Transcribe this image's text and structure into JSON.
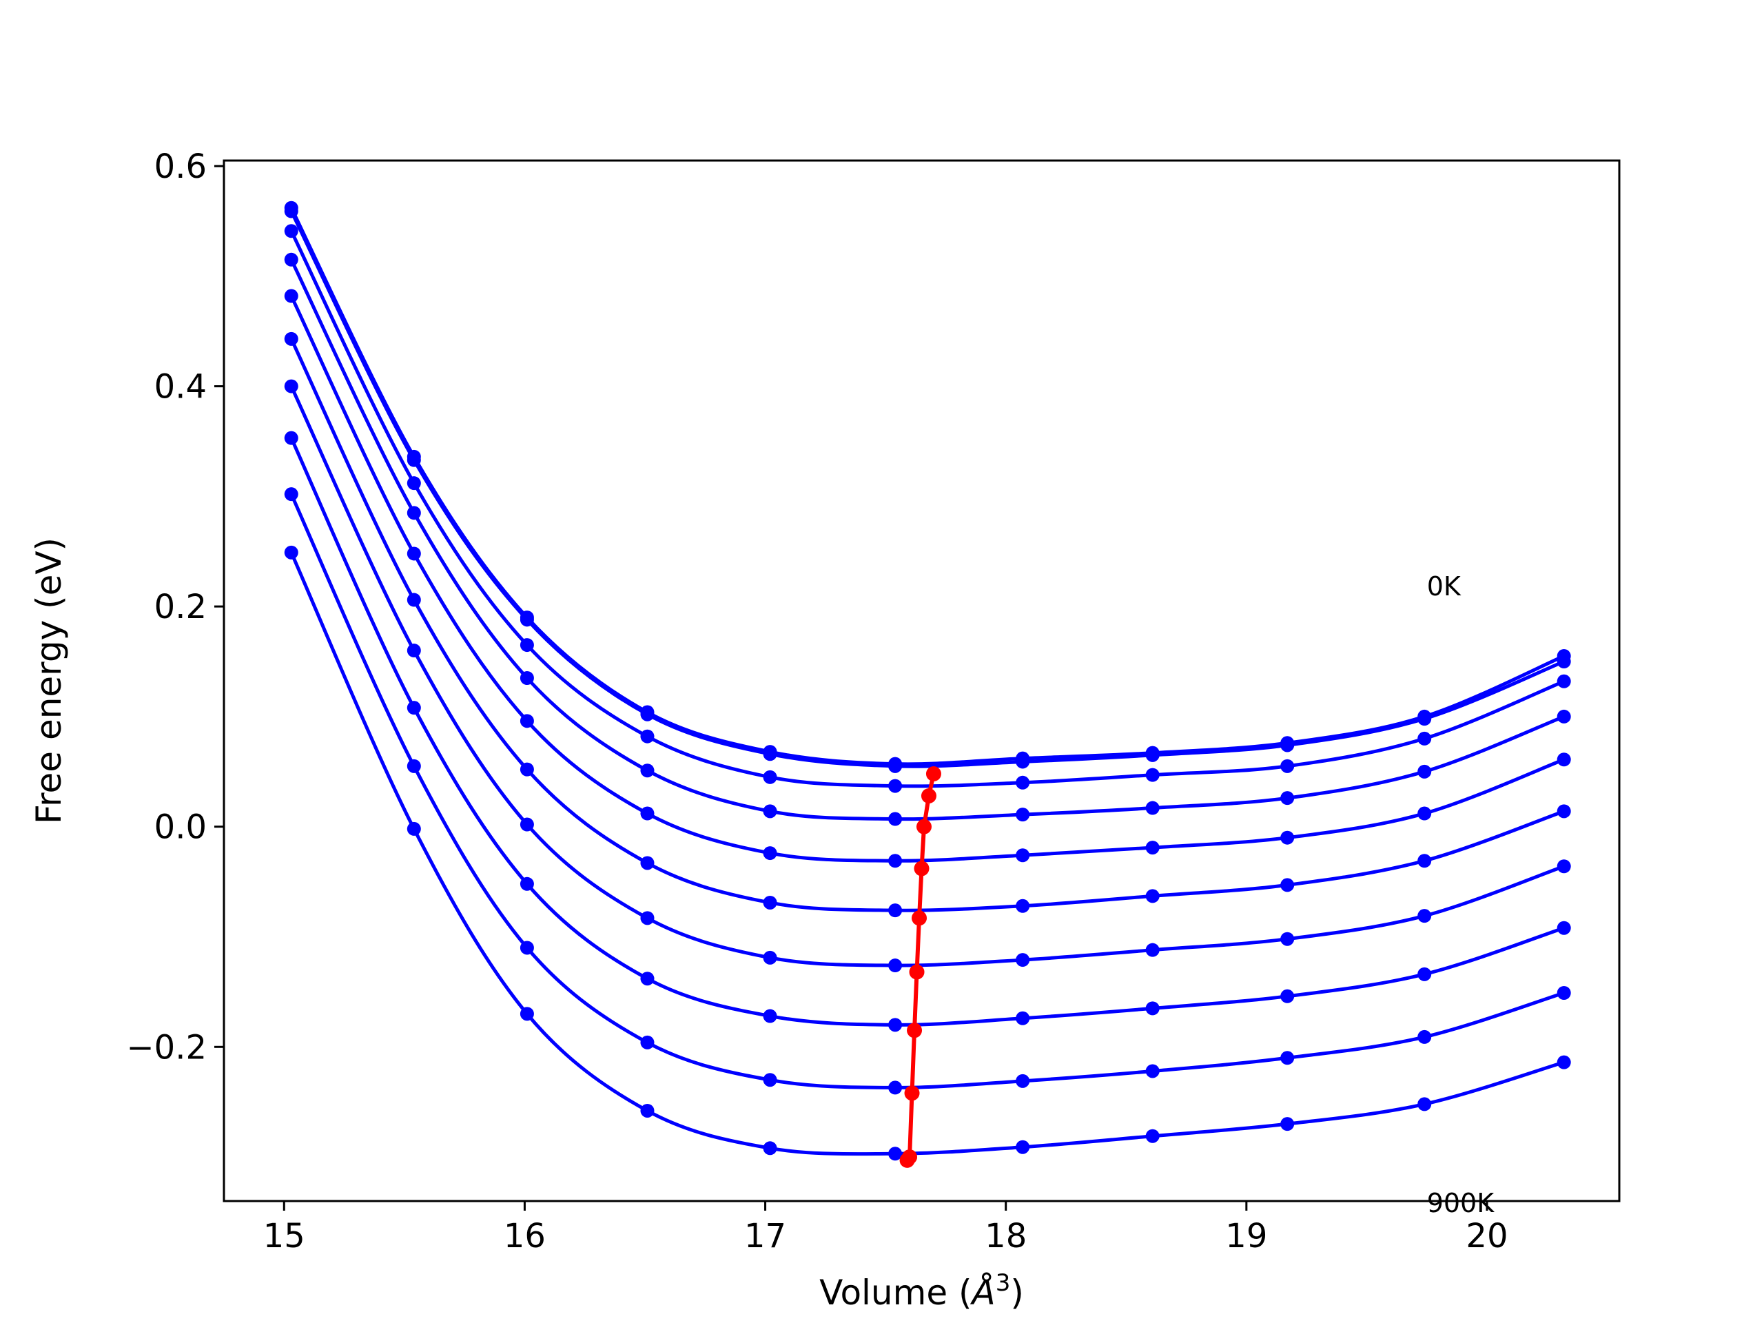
{
  "chart_data": {
    "type": "line",
    "xlabel": "Volume (Å³)",
    "xlabel_main": "Volume (",
    "xlabel_unit": "Å",
    "xlabel_sup": "3",
    "xlabel_close": ")",
    "ylabel": "Free energy (eV)",
    "xlim": [
      14.75,
      20.55
    ],
    "ylim": [
      -0.34,
      0.605
    ],
    "xticks": [
      15,
      16,
      17,
      18,
      19,
      20
    ],
    "xtick_labels": [
      "15",
      "16",
      "17",
      "18",
      "19",
      "20"
    ],
    "yticks": [
      -0.2,
      0.0,
      0.2,
      0.4,
      0.6
    ],
    "ytick_labels": [
      "−0.2",
      "0.0",
      "0.2",
      "0.4",
      "0.6"
    ],
    "grid": false,
    "annotations": [
      {
        "text": "0K",
        "x": 19.75,
        "y": 0.21
      },
      {
        "text": "900K",
        "x": 19.75,
        "y": -0.35
      }
    ],
    "colors": {
      "curves": "#0000ff",
      "minima": "#ff0000"
    },
    "x": [
      15.03,
      15.54,
      16.01,
      16.51,
      17.02,
      17.54,
      18.07,
      18.61,
      19.17,
      19.74,
      20.32
    ],
    "series": [
      {
        "values": [
          0.562,
          0.336,
          0.19,
          0.104,
          0.068,
          0.057,
          0.062,
          0.067,
          0.076,
          0.1,
          0.155
        ]
      },
      {
        "values": [
          0.559,
          0.333,
          0.188,
          0.102,
          0.066,
          0.055,
          0.059,
          0.065,
          0.074,
          0.098,
          0.15
        ]
      },
      {
        "values": [
          0.541,
          0.312,
          0.165,
          0.082,
          0.045,
          0.037,
          0.04,
          0.047,
          0.055,
          0.08,
          0.132
        ]
      },
      {
        "values": [
          0.515,
          0.285,
          0.135,
          0.051,
          0.014,
          0.007,
          0.011,
          0.017,
          0.026,
          0.05,
          0.1
        ]
      },
      {
        "values": [
          0.482,
          0.248,
          0.096,
          0.012,
          -0.024,
          -0.031,
          -0.026,
          -0.019,
          -0.01,
          0.012,
          0.061
        ]
      },
      {
        "values": [
          0.443,
          0.206,
          0.052,
          -0.033,
          -0.069,
          -0.076,
          -0.072,
          -0.063,
          -0.053,
          -0.031,
          0.014
        ]
      },
      {
        "values": [
          0.4,
          0.16,
          0.002,
          -0.083,
          -0.119,
          -0.126,
          -0.121,
          -0.112,
          -0.102,
          -0.081,
          -0.036
        ]
      },
      {
        "values": [
          0.353,
          0.108,
          -0.052,
          -0.138,
          -0.172,
          -0.18,
          -0.174,
          -0.165,
          -0.154,
          -0.134,
          -0.092
        ]
      },
      {
        "values": [
          0.302,
          0.055,
          -0.11,
          -0.196,
          -0.23,
          -0.237,
          -0.231,
          -0.222,
          -0.21,
          -0.191,
          -0.151
        ]
      },
      {
        "values": [
          0.249,
          -0.002,
          -0.17,
          -0.258,
          -0.292,
          -0.297,
          -0.291,
          -0.281,
          -0.27,
          -0.252,
          -0.214
        ]
      }
    ],
    "minima": {
      "x": [
        17.7,
        17.68,
        17.66,
        17.65,
        17.64,
        17.63,
        17.62,
        17.61,
        17.6,
        17.59
      ],
      "y": [
        0.048,
        0.028,
        0.0,
        -0.038,
        -0.083,
        -0.132,
        -0.185,
        -0.242,
        -0.3,
        -0.303
      ]
    }
  }
}
